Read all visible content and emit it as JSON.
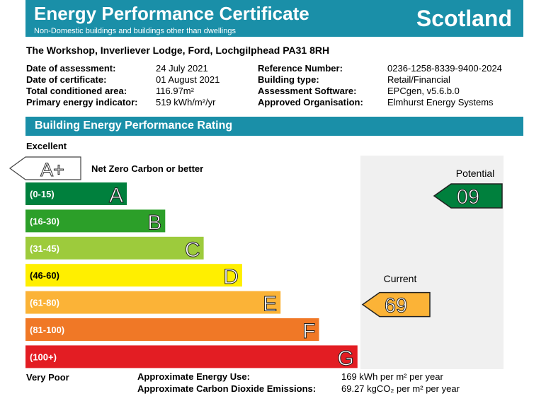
{
  "header": {
    "title": "Energy Performance Certificate",
    "subtitle": "Non-Domestic buildings and buildings other than dwellings",
    "region": "Scotland"
  },
  "address": "The Workshop, Inverliever Lodge, Ford, Lochgilphead PA31 8RH",
  "details_left": [
    {
      "label": "Date of assessment:",
      "value": "24 July 2021"
    },
    {
      "label": "Date of certificate:",
      "value": "01 August 2021"
    },
    {
      "label": "Total conditioned area:",
      "value": "116.97m²"
    },
    {
      "label": "Primary energy indicator:",
      "value": "519 kWh/m²/yr"
    }
  ],
  "details_right": [
    {
      "label": "Reference Number:",
      "value": "0236-1258-8339-9400-2024"
    },
    {
      "label": "Building type:",
      "value": "Retail/Financial"
    },
    {
      "label": "Assessment Software:",
      "value": "EPCgen, v5.6.b.0"
    },
    {
      "label": "Approved Organisation:",
      "value": "Elmhurst Energy Systems"
    }
  ],
  "rating": {
    "title": "Building Energy Performance Rating",
    "excellent_label": "Excellent",
    "very_poor_label": "Very Poor",
    "top_band": {
      "letter": "A+",
      "note": "Net Zero Carbon or better"
    },
    "bands": [
      {
        "range": "(0-15)",
        "letter": "A",
        "color": "#00803d"
      },
      {
        "range": "(16-30)",
        "letter": "B",
        "color": "#2c9f29"
      },
      {
        "range": "(31-45)",
        "letter": "C",
        "color": "#9dcb3c"
      },
      {
        "range": "(46-60)",
        "letter": "D",
        "color": "#ffef00"
      },
      {
        "range": "(61-80)",
        "letter": "E",
        "color": "#fbb337"
      },
      {
        "range": "(81-100)",
        "letter": "F",
        "color": "#f07826"
      },
      {
        "range": "(100+)",
        "letter": "G",
        "color": "#e31d23"
      }
    ],
    "potential": {
      "label": "Potential",
      "value": "09",
      "band_index": 0
    },
    "current": {
      "label": "Current",
      "value": "69",
      "band_index": 4
    }
  },
  "footer": {
    "energy_label": "Approximate Energy Use:",
    "energy_value": "169 kWh per m² per year",
    "co2_label": "Approximate Carbon Dioxide Emissions:",
    "co2_value": "69.27 kgCO₂ per m² per year"
  }
}
